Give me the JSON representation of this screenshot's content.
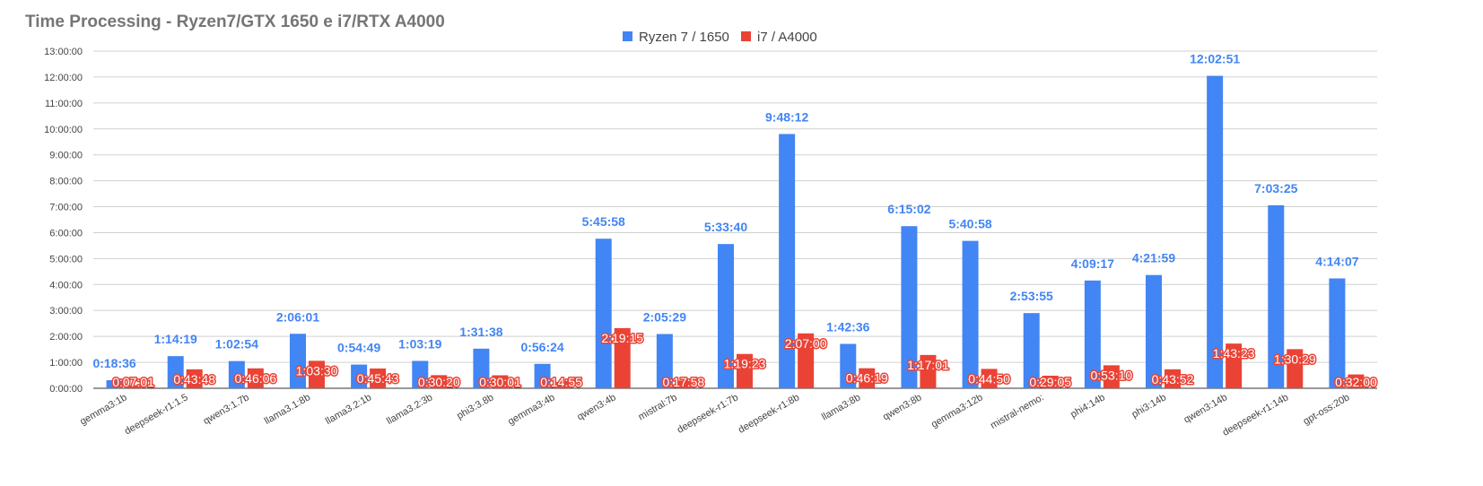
{
  "chart_data": {
    "type": "bar",
    "title": "Time Processing - Ryzen7/GTX 1650 e i7/RTX A4000",
    "xlabel": "",
    "ylabel": "",
    "ylim": [
      0,
      13
    ],
    "y_unit": "hours",
    "grid": true,
    "legend_position": "top-center",
    "y_ticks": [
      "0:00:00",
      "1:00:00",
      "2:00:00",
      "3:00:00",
      "4:00:00",
      "5:00:00",
      "6:00:00",
      "7:00:00",
      "8:00:00",
      "9:00:00",
      "10:00:00",
      "11:00:00",
      "12:00:00",
      "13:00:00"
    ],
    "categories": [
      "gemma3:1b",
      "deepseek-r1:1.5",
      "qwen3:1.7b",
      "llama3.1:8b",
      "llama3.2:1b",
      "llama3.2:3b",
      "phi3:3.8b",
      "gemma3:4b",
      "qwen3:4b",
      "mistral:7b",
      "deepseek-r1:7b",
      "deepseek-r1:8b",
      "llama3:8b",
      "qwen3:8b",
      "gemma3:12b",
      "mistral-nemo:",
      "phi4:14b",
      "phi3:14b",
      "qwen3:14b",
      "deepseek-r1:14b",
      "gpt-oss:20b"
    ],
    "series": [
      {
        "name": "Ryzen 7 / 1650",
        "color": "#4285f4",
        "labels": [
          "0:18:36",
          "1:14:19",
          "1:02:54",
          "2:06:01",
          "0:54:49",
          "1:03:19",
          "1:31:38",
          "0:56:24",
          "5:45:58",
          "2:05:29",
          "5:33:40",
          "9:48:12",
          "1:42:36",
          "6:15:02",
          "5:40:58",
          "2:53:55",
          "4:09:17",
          "4:21:59",
          "12:02:51",
          "7:03:25",
          "4:14:07"
        ],
        "values": [
          0.31,
          1.2386,
          1.0483,
          2.1003,
          0.9136,
          1.0553,
          1.5272,
          0.94,
          5.7661,
          2.0914,
          5.5611,
          9.8033,
          1.71,
          6.2506,
          5.6828,
          2.8986,
          4.1547,
          4.3664,
          12.0475,
          7.0569,
          4.2353
        ]
      },
      {
        "name": "i7 / A4000",
        "color": "#ea4335",
        "labels": [
          "0:07:01",
          "0:43:48",
          "0:46:06",
          "1:03:30",
          "0:45:43",
          "0:30:20",
          "0:30:01",
          "0:14:55",
          "2:19:15",
          "0:17:58",
          "1:19:23",
          "2:07:00",
          "0:46:19",
          "1:17:01",
          "0:44:50",
          "0:29:05",
          "0:53:10",
          "0:43:52",
          "1:43:23",
          "1:30:29",
          "0:32:00"
        ],
        "values": [
          0.1169,
          0.73,
          0.7683,
          1.0583,
          0.7619,
          0.5056,
          0.5003,
          0.2486,
          2.3208,
          0.2994,
          1.3231,
          2.1167,
          0.7719,
          1.2836,
          0.7472,
          0.4847,
          0.8861,
          0.7311,
          1.7231,
          1.5081,
          0.5333
        ]
      }
    ]
  }
}
